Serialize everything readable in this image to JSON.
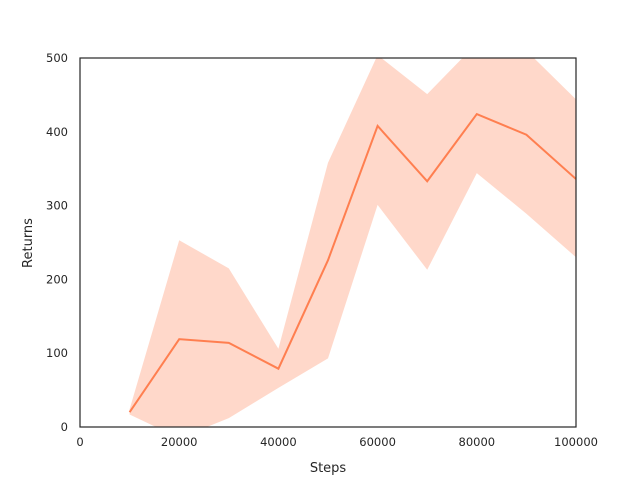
{
  "chart_data": {
    "type": "line",
    "x_label": "Steps",
    "y_label": "Returns",
    "x": [
      10000,
      20000,
      30000,
      40000,
      50000,
      60000,
      70000,
      80000,
      90000,
      100000
    ],
    "series": [
      {
        "color": "#ff7f50",
        "values": [
          20,
          119,
          114,
          79,
          226,
          408,
          333,
          424,
          396,
          336
        ],
        "upper": [
          24,
          253,
          215,
          106,
          358,
          504,
          451,
          520,
          510,
          444
        ],
        "lower": [
          17,
          -15,
          12,
          53,
          93,
          301,
          213,
          344,
          289,
          230
        ]
      }
    ],
    "xlim": [
      0,
      100000
    ],
    "xticks": [
      0,
      20000,
      40000,
      60000,
      80000,
      100000
    ],
    "ylim": [
      0,
      500
    ],
    "yticks": [
      0,
      100,
      200,
      300,
      400,
      500
    ]
  }
}
